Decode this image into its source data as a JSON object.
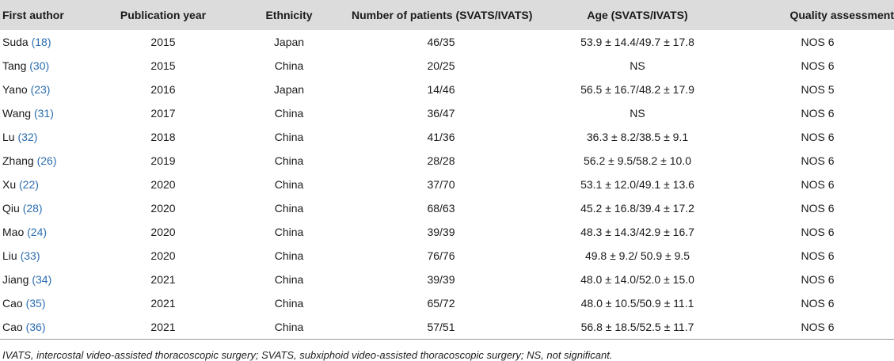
{
  "table": {
    "headers": {
      "author": "First author",
      "year": "Publication year",
      "ethnicity": "Ethnicity",
      "patients": "Number of patients (SVATS/IVATS)",
      "age": "Age (SVATS/IVATS)",
      "quality": "Quality assessment"
    },
    "rows": [
      {
        "author": "Suda",
        "ref": "(18)",
        "year": "2015",
        "ethnicity": "Japan",
        "patients": "46/35",
        "age": "53.9 ± 14.4/49.7 ± 17.8",
        "quality": "NOS 6"
      },
      {
        "author": "Tang",
        "ref": "(30)",
        "year": "2015",
        "ethnicity": "China",
        "patients": "20/25",
        "age": "NS",
        "quality": "NOS 6"
      },
      {
        "author": "Yano",
        "ref": "(23)",
        "year": "2016",
        "ethnicity": "Japan",
        "patients": "14/46",
        "age": "56.5 ± 16.7/48.2 ± 17.9",
        "quality": "NOS 5"
      },
      {
        "author": "Wang",
        "ref": "(31)",
        "year": "2017",
        "ethnicity": "China",
        "patients": "36/47",
        "age": "NS",
        "quality": "NOS 6"
      },
      {
        "author": "Lu",
        "ref": "(32)",
        "year": "2018",
        "ethnicity": "China",
        "patients": "41/36",
        "age": "36.3 ± 8.2/38.5 ± 9.1",
        "quality": "NOS 6"
      },
      {
        "author": "Zhang",
        "ref": "(26)",
        "year": "2019",
        "ethnicity": "China",
        "patients": "28/28",
        "age": "56.2 ± 9.5/58.2 ± 10.0",
        "quality": "NOS 6"
      },
      {
        "author": "Xu",
        "ref": "(22)",
        "year": "2020",
        "ethnicity": "China",
        "patients": "37/70",
        "age": "53.1 ± 12.0/49.1 ± 13.6",
        "quality": "NOS 6"
      },
      {
        "author": "Qiu",
        "ref": "(28)",
        "year": "2020",
        "ethnicity": "China",
        "patients": "68/63",
        "age": "45.2 ± 16.8/39.4 ± 17.2",
        "quality": "NOS 6"
      },
      {
        "author": "Mao",
        "ref": "(24)",
        "year": "2020",
        "ethnicity": "China",
        "patients": "39/39",
        "age": "48.3 ± 14.3/42.9 ± 16.7",
        "quality": "NOS 6"
      },
      {
        "author": "Liu",
        "ref": "(33)",
        "year": "2020",
        "ethnicity": "China",
        "patients": "76/76",
        "age": "49.8 ± 9.2/ 50.9 ± 9.5",
        "quality": "NOS 6"
      },
      {
        "author": "Jiang",
        "ref": "(34)",
        "year": "2021",
        "ethnicity": "China",
        "patients": "39/39",
        "age": "48.0 ± 14.0/52.0 ± 15.0",
        "quality": "NOS 6"
      },
      {
        "author": "Cao",
        "ref": "(35)",
        "year": "2021",
        "ethnicity": "China",
        "patients": "65/72",
        "age": "48.0 ± 10.5/50.9 ± 11.1",
        "quality": "NOS 6"
      },
      {
        "author": "Cao",
        "ref": "(36)",
        "year": "2021",
        "ethnicity": "China",
        "patients": "57/51",
        "age": "56.8 ± 18.5/52.5 ± 11.7",
        "quality": "NOS 6"
      }
    ]
  },
  "footnote": "IVATS, intercostal video-assisted thoracoscopic surgery; SVATS, subxiphoid video-assisted thoracoscopic surgery; NS, not significant.",
  "colors": {
    "header_bg": "#dcdcdc",
    "reference_link": "#2a6db0"
  }
}
